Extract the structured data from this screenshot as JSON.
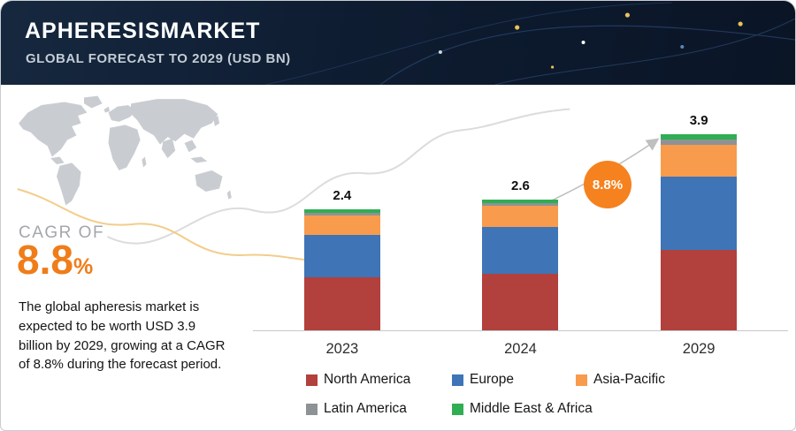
{
  "header": {
    "title": "APHERESISMARKET",
    "subtitle": "GLOBAL FORECAST TO 2029 (USD BN)"
  },
  "sidebar": {
    "cagr_label": "CAGR OF",
    "cagr_value": "8.8",
    "cagr_unit": "%",
    "description": "The global apheresis market is expected to be worth USD 3.9 billion by 2029, growing at a CAGR of 8.8% during the forecast period."
  },
  "chart": {
    "growth_badge": "8.8%"
  },
  "chart_data": {
    "type": "bar",
    "stacked": true,
    "title": "Apheresis Market — Global Forecast to 2029 (USD BN)",
    "categories": [
      "2023",
      "2024",
      "2029"
    ],
    "totals": [
      2.4,
      2.6,
      3.9
    ],
    "series": [
      {
        "name": "North America",
        "color": "#b2403c",
        "values": [
          1.05,
          1.12,
          1.6
        ]
      },
      {
        "name": "Europe",
        "color": "#3f74b7",
        "values": [
          0.85,
          0.93,
          1.45
        ]
      },
      {
        "name": "Asia-Pacific",
        "color": "#f89b4c",
        "values": [
          0.38,
          0.42,
          0.64
        ]
      },
      {
        "name": "Latin America",
        "color": "#8f9295",
        "values": [
          0.06,
          0.06,
          0.1
        ]
      },
      {
        "name": "Middle East & Africa",
        "color": "#2fae54",
        "values": [
          0.06,
          0.07,
          0.11
        ]
      }
    ],
    "xlabel": "",
    "ylabel": "",
    "ylim": [
      0,
      4
    ],
    "grid": false,
    "legend_position": "bottom"
  }
}
